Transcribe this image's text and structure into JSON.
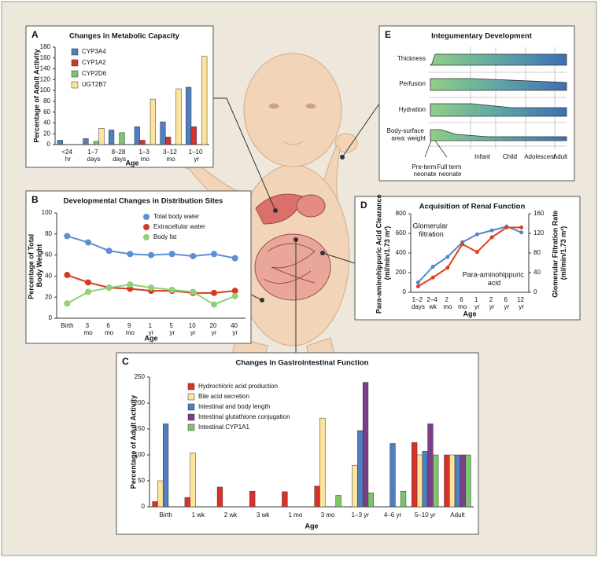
{
  "chart_data": [
    {
      "type": "bar",
      "label": "A",
      "title": "Changes in Metabolic Capacity",
      "x_label": "Age",
      "y_label": "Percentage of Adult Activity",
      "categories": [
        "<24 hr",
        "1–7 days",
        "8–28 days",
        "1–3 mo",
        "3–12 mo",
        "1–10 yr"
      ],
      "series": [
        {
          "name": "CYP3A4",
          "color": "#4f7fc0",
          "values": [
            8,
            11,
            27,
            33,
            42,
            106
          ]
        },
        {
          "name": "CYP1A2",
          "color": "#d4322c",
          "values": [
            null,
            null,
            null,
            8,
            14,
            33
          ]
        },
        {
          "name": "CYP2D6",
          "color": "#7dc56a",
          "values": [
            null,
            6,
            22,
            null,
            null,
            null
          ]
        },
        {
          "name": "UGT2B7",
          "color": "#fde39b",
          "values": [
            null,
            30,
            null,
            84,
            103,
            163
          ]
        }
      ],
      "ylim": [
        0,
        180
      ],
      "yticks": [
        0,
        20,
        40,
        60,
        80,
        100,
        120,
        140,
        160,
        180
      ],
      "legend": "upper left"
    },
    {
      "type": "line",
      "label": "B",
      "title": "Developmental Changes in Distribution Sites",
      "x_label": "Age",
      "y_label": "Percentage of Total Body Weight",
      "categories": [
        "Birth",
        "3 mo",
        "6 mo",
        "9 mo",
        "1 yr",
        "5 yr",
        "10 yr",
        "20 yr",
        "40 yr"
      ],
      "series": [
        {
          "name": "Total body water",
          "color": "#5b8fd0",
          "values": [
            78,
            72,
            64,
            61,
            60,
            61,
            59,
            61,
            57
          ]
        },
        {
          "name": "Extracellular water",
          "color": "#d63a1e",
          "values": [
            41,
            34,
            29,
            28,
            26,
            26,
            24,
            24,
            26
          ]
        },
        {
          "name": "Body fat",
          "color": "#8fd07a",
          "values": [
            14,
            25,
            29,
            32,
            29,
            27,
            25,
            13,
            21
          ]
        }
      ],
      "ylim": [
        0,
        100
      ],
      "yticks": [
        0,
        20,
        40,
        60,
        80,
        100
      ],
      "legend": "upper right"
    },
    {
      "type": "bar",
      "label": "C",
      "title": "Changes in Gastrointestinal Function",
      "x_label": "Age",
      "y_label": "Percentage of Adult Activity",
      "categories": [
        "Birth",
        "1 wk",
        "2 wk",
        "3 wk",
        "1 mo",
        "3 mo",
        "1–3 yr",
        "4–6 yr",
        "5–10 yr",
        "Adult"
      ],
      "series": [
        {
          "name": "Hydrochloric acid production",
          "color": "#d8312a",
          "values": [
            10,
            18,
            38,
            30,
            29,
            40,
            null,
            null,
            124,
            100
          ]
        },
        {
          "name": "Bile acid secretion",
          "color": "#fde49a",
          "values": [
            50,
            104,
            null,
            null,
            null,
            171,
            80,
            null,
            100,
            100
          ]
        },
        {
          "name": "Intestinal and body length",
          "color": "#4f7fbf",
          "values": [
            160,
            null,
            null,
            null,
            null,
            null,
            147,
            122,
            107,
            100
          ]
        },
        {
          "name": "Intestinal glutathione conjugation",
          "color": "#7b3f8a",
          "values": [
            null,
            null,
            null,
            null,
            null,
            null,
            240,
            null,
            160,
            100
          ]
        },
        {
          "name": "Intestinal CYP1A1",
          "color": "#7dc56a",
          "values": [
            null,
            null,
            null,
            null,
            null,
            22,
            27,
            30,
            100,
            100
          ]
        }
      ],
      "ylim": [
        0,
        250
      ],
      "yticks": [
        0,
        50,
        100,
        150,
        200,
        250
      ],
      "legend": "upper left"
    },
    {
      "type": "line",
      "label": "D",
      "title": "Acquisition of Renal Function",
      "x_label": "Age",
      "y_label": "Para-aminohippuric Acid Clearance (ml/min/1.73 m²)",
      "y2_label": "Glomerular Filtration Rate (ml/min/1.73 m²)",
      "categories": [
        "1–2 days",
        "2–4 wk",
        "2 mo",
        "6 mo",
        "1 yr",
        "2 yr",
        "6 yr",
        "12 yr"
      ],
      "series": [
        {
          "name": "Glomerular filtration",
          "color": "#4f86c6",
          "axis": "y2",
          "values": [
            20,
            52,
            72,
            102,
            118,
            126,
            134,
            122
          ]
        },
        {
          "name": "Para-aminohippuric acid",
          "color": "#e0401f",
          "values": [
            60,
            150,
            250,
            490,
            410,
            560,
            660,
            660
          ]
        }
      ],
      "ylim": [
        0,
        800
      ],
      "yticks": [
        0,
        200,
        400,
        600,
        800
      ],
      "y2lim": [
        0,
        160
      ],
      "y2ticks": [
        0,
        40,
        80,
        120,
        160
      ]
    },
    {
      "type": "diagram",
      "label": "E",
      "title": "Integumentary Development",
      "rows": [
        "Thickness",
        "Perfusion",
        "Hydration",
        "Body-surface area: weight"
      ],
      "stages": [
        "Pre-term neonate",
        "Full term neonate",
        "Infant",
        "Child",
        "Adolescent",
        "Adult"
      ]
    }
  ]
}
